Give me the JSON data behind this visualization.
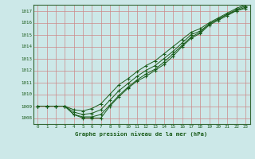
{
  "title": "Graphe pression niveau de la mer (hPa)",
  "bg_color": "#cce8e8",
  "grid_color": "#cc8888",
  "line_color": "#1a5c1a",
  "spine_color": "#336633",
  "xlim": [
    -0.5,
    23.5
  ],
  "ylim": [
    1007.5,
    1017.5
  ],
  "yticks": [
    1008,
    1009,
    1010,
    1011,
    1012,
    1013,
    1014,
    1015,
    1016,
    1017
  ],
  "xticks": [
    0,
    1,
    2,
    3,
    4,
    5,
    6,
    7,
    8,
    9,
    10,
    11,
    12,
    13,
    14,
    15,
    16,
    17,
    18,
    19,
    20,
    21,
    22,
    23
  ],
  "series": [
    [
      1009.0,
      1009.0,
      1009.0,
      1009.0,
      1008.3,
      1008.0,
      1008.0,
      1008.0,
      1009.0,
      1009.8,
      1010.5,
      1011.1,
      1011.5,
      1012.0,
      1012.5,
      1013.2,
      1014.0,
      1014.7,
      1015.1,
      1015.8,
      1016.2,
      1016.6,
      1017.0,
      1017.2
    ],
    [
      1009.0,
      1009.0,
      1009.0,
      1009.0,
      1008.3,
      1008.1,
      1008.1,
      1008.3,
      1009.1,
      1009.9,
      1010.6,
      1011.2,
      1011.7,
      1012.1,
      1012.7,
      1013.4,
      1014.1,
      1014.8,
      1015.2,
      1015.9,
      1016.3,
      1016.7,
      1017.0,
      1017.3
    ],
    [
      1009.0,
      1009.0,
      1009.0,
      1009.0,
      1008.5,
      1008.3,
      1008.4,
      1008.7,
      1009.5,
      1010.3,
      1010.9,
      1011.5,
      1012.0,
      1012.4,
      1013.0,
      1013.6,
      1014.3,
      1015.0,
      1015.3,
      1015.9,
      1016.3,
      1016.7,
      1017.1,
      1017.4
    ],
    [
      1009.0,
      1009.0,
      1009.0,
      1009.0,
      1008.7,
      1008.6,
      1008.8,
      1009.2,
      1010.0,
      1010.8,
      1011.3,
      1011.9,
      1012.4,
      1012.8,
      1013.4,
      1014.0,
      1014.6,
      1015.2,
      1015.5,
      1016.0,
      1016.4,
      1016.8,
      1017.2,
      1017.5
    ]
  ]
}
